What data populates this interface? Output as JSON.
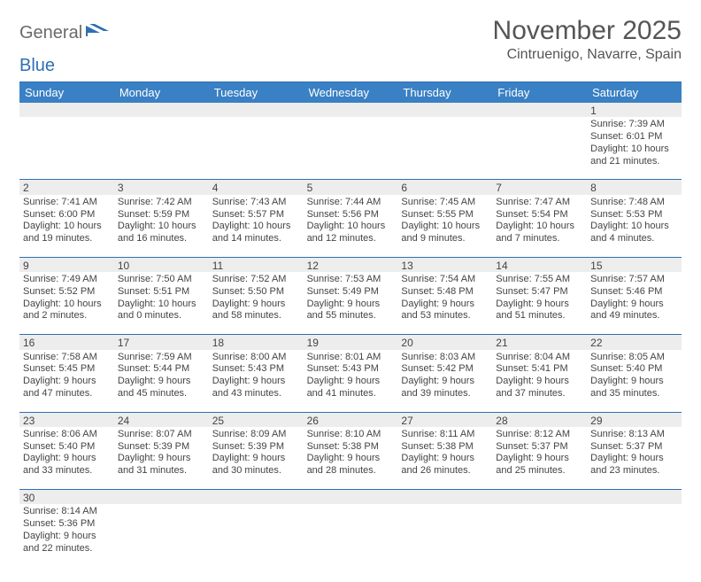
{
  "logo": {
    "text_a": "General",
    "text_b": "Blue"
  },
  "title": {
    "month": "November 2025",
    "location": "Cintruenigo, Navarre, Spain"
  },
  "colors": {
    "header_bg": "#3a80c4",
    "border": "#2f6fb3",
    "daynum_bg": "#ededed",
    "text": "#444444",
    "logo_gray": "#6a6a6a",
    "logo_blue": "#2f6fb3"
  },
  "day_headers": [
    "Sunday",
    "Monday",
    "Tuesday",
    "Wednesday",
    "Thursday",
    "Friday",
    "Saturday"
  ],
  "weeks": [
    {
      "nums": [
        "",
        "",
        "",
        "",
        "",
        "",
        "1"
      ],
      "cells": [
        null,
        null,
        null,
        null,
        null,
        null,
        {
          "sunrise": "Sunrise: 7:39 AM",
          "sunset": "Sunset: 6:01 PM",
          "day1": "Daylight: 10 hours",
          "day2": "and 21 minutes."
        }
      ]
    },
    {
      "nums": [
        "2",
        "3",
        "4",
        "5",
        "6",
        "7",
        "8"
      ],
      "cells": [
        {
          "sunrise": "Sunrise: 7:41 AM",
          "sunset": "Sunset: 6:00 PM",
          "day1": "Daylight: 10 hours",
          "day2": "and 19 minutes."
        },
        {
          "sunrise": "Sunrise: 7:42 AM",
          "sunset": "Sunset: 5:59 PM",
          "day1": "Daylight: 10 hours",
          "day2": "and 16 minutes."
        },
        {
          "sunrise": "Sunrise: 7:43 AM",
          "sunset": "Sunset: 5:57 PM",
          "day1": "Daylight: 10 hours",
          "day2": "and 14 minutes."
        },
        {
          "sunrise": "Sunrise: 7:44 AM",
          "sunset": "Sunset: 5:56 PM",
          "day1": "Daylight: 10 hours",
          "day2": "and 12 minutes."
        },
        {
          "sunrise": "Sunrise: 7:45 AM",
          "sunset": "Sunset: 5:55 PM",
          "day1": "Daylight: 10 hours",
          "day2": "and 9 minutes."
        },
        {
          "sunrise": "Sunrise: 7:47 AM",
          "sunset": "Sunset: 5:54 PM",
          "day1": "Daylight: 10 hours",
          "day2": "and 7 minutes."
        },
        {
          "sunrise": "Sunrise: 7:48 AM",
          "sunset": "Sunset: 5:53 PM",
          "day1": "Daylight: 10 hours",
          "day2": "and 4 minutes."
        }
      ]
    },
    {
      "nums": [
        "9",
        "10",
        "11",
        "12",
        "13",
        "14",
        "15"
      ],
      "cells": [
        {
          "sunrise": "Sunrise: 7:49 AM",
          "sunset": "Sunset: 5:52 PM",
          "day1": "Daylight: 10 hours",
          "day2": "and 2 minutes."
        },
        {
          "sunrise": "Sunrise: 7:50 AM",
          "sunset": "Sunset: 5:51 PM",
          "day1": "Daylight: 10 hours",
          "day2": "and 0 minutes."
        },
        {
          "sunrise": "Sunrise: 7:52 AM",
          "sunset": "Sunset: 5:50 PM",
          "day1": "Daylight: 9 hours",
          "day2": "and 58 minutes."
        },
        {
          "sunrise": "Sunrise: 7:53 AM",
          "sunset": "Sunset: 5:49 PM",
          "day1": "Daylight: 9 hours",
          "day2": "and 55 minutes."
        },
        {
          "sunrise": "Sunrise: 7:54 AM",
          "sunset": "Sunset: 5:48 PM",
          "day1": "Daylight: 9 hours",
          "day2": "and 53 minutes."
        },
        {
          "sunrise": "Sunrise: 7:55 AM",
          "sunset": "Sunset: 5:47 PM",
          "day1": "Daylight: 9 hours",
          "day2": "and 51 minutes."
        },
        {
          "sunrise": "Sunrise: 7:57 AM",
          "sunset": "Sunset: 5:46 PM",
          "day1": "Daylight: 9 hours",
          "day2": "and 49 minutes."
        }
      ]
    },
    {
      "nums": [
        "16",
        "17",
        "18",
        "19",
        "20",
        "21",
        "22"
      ],
      "cells": [
        {
          "sunrise": "Sunrise: 7:58 AM",
          "sunset": "Sunset: 5:45 PM",
          "day1": "Daylight: 9 hours",
          "day2": "and 47 minutes."
        },
        {
          "sunrise": "Sunrise: 7:59 AM",
          "sunset": "Sunset: 5:44 PM",
          "day1": "Daylight: 9 hours",
          "day2": "and 45 minutes."
        },
        {
          "sunrise": "Sunrise: 8:00 AM",
          "sunset": "Sunset: 5:43 PM",
          "day1": "Daylight: 9 hours",
          "day2": "and 43 minutes."
        },
        {
          "sunrise": "Sunrise: 8:01 AM",
          "sunset": "Sunset: 5:43 PM",
          "day1": "Daylight: 9 hours",
          "day2": "and 41 minutes."
        },
        {
          "sunrise": "Sunrise: 8:03 AM",
          "sunset": "Sunset: 5:42 PM",
          "day1": "Daylight: 9 hours",
          "day2": "and 39 minutes."
        },
        {
          "sunrise": "Sunrise: 8:04 AM",
          "sunset": "Sunset: 5:41 PM",
          "day1": "Daylight: 9 hours",
          "day2": "and 37 minutes."
        },
        {
          "sunrise": "Sunrise: 8:05 AM",
          "sunset": "Sunset: 5:40 PM",
          "day1": "Daylight: 9 hours",
          "day2": "and 35 minutes."
        }
      ]
    },
    {
      "nums": [
        "23",
        "24",
        "25",
        "26",
        "27",
        "28",
        "29"
      ],
      "cells": [
        {
          "sunrise": "Sunrise: 8:06 AM",
          "sunset": "Sunset: 5:40 PM",
          "day1": "Daylight: 9 hours",
          "day2": "and 33 minutes."
        },
        {
          "sunrise": "Sunrise: 8:07 AM",
          "sunset": "Sunset: 5:39 PM",
          "day1": "Daylight: 9 hours",
          "day2": "and 31 minutes."
        },
        {
          "sunrise": "Sunrise: 8:09 AM",
          "sunset": "Sunset: 5:39 PM",
          "day1": "Daylight: 9 hours",
          "day2": "and 30 minutes."
        },
        {
          "sunrise": "Sunrise: 8:10 AM",
          "sunset": "Sunset: 5:38 PM",
          "day1": "Daylight: 9 hours",
          "day2": "and 28 minutes."
        },
        {
          "sunrise": "Sunrise: 8:11 AM",
          "sunset": "Sunset: 5:38 PM",
          "day1": "Daylight: 9 hours",
          "day2": "and 26 minutes."
        },
        {
          "sunrise": "Sunrise: 8:12 AM",
          "sunset": "Sunset: 5:37 PM",
          "day1": "Daylight: 9 hours",
          "day2": "and 25 minutes."
        },
        {
          "sunrise": "Sunrise: 8:13 AM",
          "sunset": "Sunset: 5:37 PM",
          "day1": "Daylight: 9 hours",
          "day2": "and 23 minutes."
        }
      ]
    },
    {
      "nums": [
        "30",
        "",
        "",
        "",
        "",
        "",
        ""
      ],
      "cells": [
        {
          "sunrise": "Sunrise: 8:14 AM",
          "sunset": "Sunset: 5:36 PM",
          "day1": "Daylight: 9 hours",
          "day2": "and 22 minutes."
        },
        null,
        null,
        null,
        null,
        null,
        null
      ]
    }
  ]
}
